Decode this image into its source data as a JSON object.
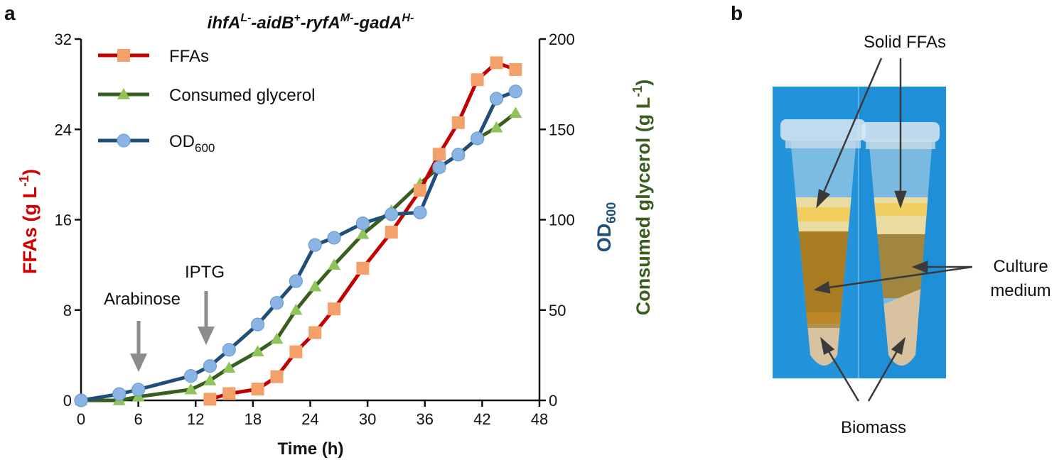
{
  "panel_a_letter": "a",
  "panel_b_letter": "b",
  "chart_data": {
    "type": "line",
    "title_parts": [
      {
        "text": "ihfA",
        "sup": false
      },
      {
        "text": "L-",
        "sup": true
      },
      {
        "text": "-aidB",
        "sup": false
      },
      {
        "text": "+",
        "sup": true
      },
      {
        "text": "-ryfA",
        "sup": false
      },
      {
        "text": "M-",
        "sup": true
      },
      {
        "text": "-gadA",
        "sup": false
      },
      {
        "text": "H-",
        "sup": true
      }
    ],
    "xlabel": "Time (h)",
    "xlim": [
      0,
      48
    ],
    "xticks": [
      "0",
      "6",
      "12",
      "18",
      "24",
      "30",
      "36",
      "42",
      "48"
    ],
    "ylabel_left": {
      "main": "FFAs (g L",
      "sup": "-1",
      "close": ")"
    },
    "ylim_left": [
      0,
      32
    ],
    "yticks_left": [
      "0",
      "8",
      "16",
      "24",
      "32"
    ],
    "ylabel_right_1": {
      "main": "OD",
      "sub": "600"
    },
    "ylabel_right_2": {
      "main": "Consumed glycerol (g L",
      "sup": "-1",
      "close": ")"
    },
    "ylim_right": [
      0,
      200
    ],
    "yticks_right": [
      "0",
      "50",
      "100",
      "150",
      "200"
    ],
    "legend_position": "top-left",
    "series": [
      {
        "name": "FFAs",
        "axis": "left",
        "color": "#c00000",
        "marker": "square",
        "marker_color": "#f4a06a",
        "x": [
          13.5,
          15.5,
          18.5,
          20.5,
          22.5,
          24.5,
          26.5,
          29.5,
          32.5,
          35.5,
          37.5,
          39.5,
          41.5,
          43.5,
          45.5
        ],
        "y": [
          0.1,
          0.6,
          1.0,
          2.1,
          4.3,
          6.0,
          8.1,
          11.7,
          14.9,
          18.6,
          21.8,
          24.6,
          28.4,
          29.9,
          29.3
        ]
      },
      {
        "name": "Consumed glycerol",
        "axis": "right",
        "color": "#3a5e1e",
        "marker": "triangle",
        "marker_color": "#8fc45a",
        "x": [
          0,
          4,
          6,
          11.5,
          13.5,
          15.5,
          18.5,
          20.5,
          22.5,
          24.5,
          26.5,
          29.5,
          32.5,
          35.5,
          37.5,
          39.5,
          41.5,
          43.5,
          45.5
        ],
        "y": [
          0,
          0,
          2,
          6,
          11,
          18,
          27,
          34,
          50,
          63,
          75,
          92,
          105,
          120,
          129,
          136,
          145,
          151,
          159
        ]
      },
      {
        "name": "OD600",
        "label_main": "OD",
        "label_sub": "600",
        "axis": "right",
        "color": "#1f4e79",
        "marker": "circle",
        "marker_color": "#8ab4e4",
        "x": [
          0,
          4,
          6,
          11.5,
          13.5,
          15.5,
          18.5,
          20.5,
          22.5,
          24.5,
          26.5,
          29.5,
          32.5,
          35.5,
          37.5,
          39.5,
          41.5,
          43.5,
          45.5
        ],
        "y": [
          0,
          3.5,
          6,
          13.5,
          19,
          28,
          42,
          54,
          66,
          86,
          90,
          98,
          103,
          104,
          129,
          136,
          145,
          167,
          171
        ]
      }
    ],
    "annotations": [
      {
        "text": "Arabinose",
        "x": 6
      },
      {
        "text": "IPTG",
        "x": 13
      }
    ]
  },
  "photo": {
    "labels": {
      "solid_ffas": "Solid FFAs",
      "culture_line1": "Culture",
      "culture_line2": "medium",
      "biomass": "Biomass"
    },
    "colors": {
      "background": "#1f8fd8",
      "medium": "#a87d22",
      "ffa_layer": "#eadba0",
      "biomass": "#d9c2a0"
    }
  }
}
